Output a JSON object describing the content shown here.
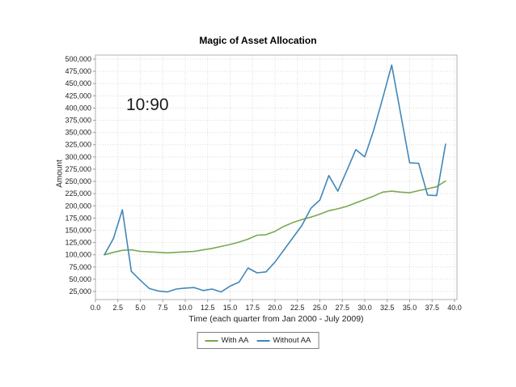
{
  "chart_data": {
    "type": "line",
    "title": "Magic of Asset Allocation",
    "xlabel": "Time (each quarter from Jan 2000 - July 2009)",
    "ylabel": "Amount",
    "xlim": [
      0,
      40.3
    ],
    "ylim": [
      8000,
      508000
    ],
    "grid": true,
    "legend_position": "bottom",
    "x_ticks": [
      0,
      2.5,
      5,
      7.5,
      10,
      12.5,
      15,
      17.5,
      20,
      22.5,
      25,
      27.5,
      30,
      32.5,
      35,
      37.5,
      40
    ],
    "x_tick_labels": [
      "0.0",
      "2.5",
      "5.0",
      "7.5",
      "10.0",
      "12.5",
      "15.0",
      "17.5",
      "20.0",
      "22.5",
      "25.0",
      "27.5",
      "30.0",
      "32.5",
      "35.0",
      "37.5",
      "40.0"
    ],
    "y_ticks": [
      25000,
      50000,
      75000,
      100000,
      125000,
      150000,
      175000,
      200000,
      225000,
      250000,
      275000,
      300000,
      325000,
      350000,
      375000,
      400000,
      425000,
      450000,
      475000,
      500000
    ],
    "y_tick_labels": [
      "25,000",
      "50,000",
      "75,000",
      "100,000",
      "125,000",
      "150,000",
      "175,000",
      "200,000",
      "225,000",
      "250,000",
      "275,000",
      "300,000",
      "325,000",
      "350,000",
      "375,000",
      "400,000",
      "425,000",
      "450,000",
      "475,000",
      "500,000"
    ],
    "x": [
      1,
      2,
      3,
      4,
      5,
      6,
      7,
      8,
      9,
      10,
      11,
      12,
      13,
      14,
      15,
      16,
      17,
      18,
      19,
      20,
      21,
      22,
      23,
      24,
      25,
      26,
      27,
      28,
      29,
      30,
      31,
      32,
      33,
      34,
      35,
      36,
      37,
      38,
      39
    ],
    "series": [
      {
        "name": "With AA",
        "color": "#7aa850",
        "values": [
          100000,
          105000,
          109000,
          110000,
          107000,
          106000,
          105000,
          104000,
          105000,
          106000,
          107000,
          110000,
          113000,
          117000,
          121000,
          126000,
          132000,
          140000,
          141000,
          148000,
          158000,
          166000,
          172000,
          177000,
          183000,
          190000,
          194000,
          199000,
          206000,
          213000,
          220000,
          228000,
          230000,
          228000,
          227000,
          231000,
          235000,
          239000,
          251000
        ]
      },
      {
        "name": "Without AA",
        "color": "#4287b8",
        "values": [
          100000,
          133000,
          192000,
          66000,
          48000,
          31000,
          26000,
          24000,
          30000,
          32000,
          33000,
          27000,
          30000,
          24000,
          36000,
          44000,
          73000,
          63000,
          65000,
          85000,
          110000,
          135000,
          160000,
          195000,
          212000,
          262000,
          230000,
          272000,
          315000,
          300000,
          355000,
          420000,
          488000,
          388000,
          288000,
          287000,
          222000,
          221000,
          326000
        ]
      }
    ],
    "annotation": {
      "text": "10:90",
      "x": 4,
      "y": 400000
    }
  },
  "colors": {
    "with_aa": "#7aa850",
    "without_aa": "#4287b8",
    "grid": "#dcdcdc",
    "plot_border": "#b3b3b3",
    "tick": "#999999",
    "text": "#222222"
  }
}
